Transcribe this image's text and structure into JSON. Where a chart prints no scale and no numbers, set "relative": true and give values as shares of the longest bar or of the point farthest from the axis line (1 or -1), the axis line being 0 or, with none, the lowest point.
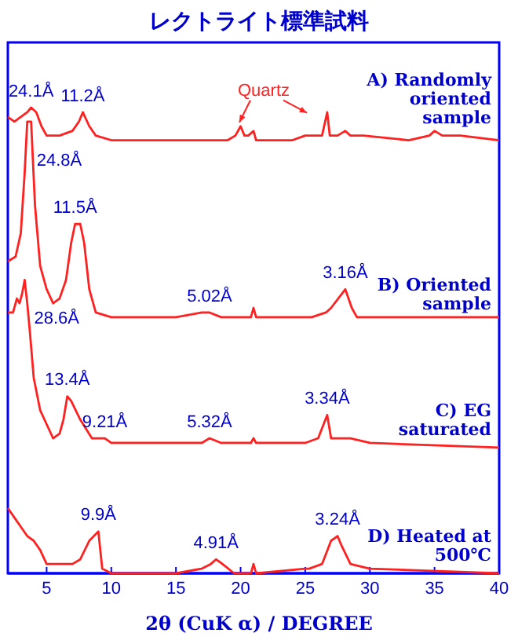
{
  "chart_data": {
    "type": "line",
    "title": "レクトライト標準試料",
    "xlabel": "2θ (CuK α) / DEGREE",
    "relative": true,
    "xlim": [
      2,
      40
    ],
    "xticks": [
      5,
      10,
      15,
      20,
      25,
      30,
      35,
      40
    ],
    "tick_labels": "x",
    "legend": false,
    "grid": false,
    "marker": "none",
    "line_style": "solid",
    "series": [
      {
        "name": "A) Randomly oriented sample",
        "color": "#ff2020",
        "x": [
          2,
          2.5,
          3,
          3.5,
          3.8,
          4.2,
          4.6,
          5,
          6,
          7,
          7.5,
          7.8,
          8.3,
          8.8,
          10,
          15,
          19,
          19.6,
          20,
          20.3,
          20.6,
          21,
          21.2,
          24,
          25,
          26.3,
          26.7,
          26.9,
          27.5,
          28.1,
          28.5,
          29.5,
          33,
          34.6,
          35,
          35.6,
          37,
          40
        ],
        "values": [
          0.98,
          0.97,
          0.98,
          0.99,
          1,
          0.99,
          0.96,
          0.94,
          0.94,
          0.95,
          0.97,
          0.99,
          0.96,
          0.94,
          0.93,
          0.93,
          0.93,
          0.94,
          0.96,
          0.94,
          0.94,
          0.95,
          0.93,
          0.93,
          0.94,
          0.94,
          0.99,
          0.94,
          0.94,
          0.95,
          0.94,
          0.94,
          0.93,
          0.94,
          0.95,
          0.94,
          0.94,
          0.93
        ]
      },
      {
        "name": "B) Oriented sample",
        "color": "#ff2020",
        "x": [
          2,
          2.6,
          3,
          3.3,
          3.5,
          3.8,
          4.1,
          4.5,
          5,
          5.5,
          6,
          6.5,
          6.9,
          7.2,
          7.6,
          7.9,
          8.3,
          8.8,
          10,
          15,
          17,
          17.6,
          18.5,
          20,
          20.8,
          21,
          21.2,
          24,
          25,
          25.5,
          26.6,
          27,
          28.1,
          28.6,
          29,
          30,
          40
        ],
        "values": [
          0.67,
          0.68,
          0.73,
          0.86,
          0.97,
          0.97,
          0.79,
          0.66,
          0.61,
          0.58,
          0.59,
          0.63,
          0.71,
          0.75,
          0.75,
          0.71,
          0.61,
          0.56,
          0.55,
          0.55,
          0.56,
          0.56,
          0.55,
          0.55,
          0.55,
          0.57,
          0.55,
          0.55,
          0.55,
          0.55,
          0.56,
          0.57,
          0.61,
          0.57,
          0.55,
          0.55,
          0.55
        ]
      },
      {
        "name": "C) EG saturated",
        "color": "#ff2020",
        "x": [
          2,
          2.4,
          2.7,
          2.9,
          3.1,
          3.3,
          3.5,
          3.7,
          4,
          4.5,
          5,
          5.5,
          6,
          6.3,
          6.6,
          6.9,
          7.6,
          8.5,
          9.5,
          10,
          15,
          17,
          17.6,
          18.5,
          20.8,
          21,
          21.2,
          25,
          26,
          26.7,
          27,
          28.5,
          30,
          40
        ],
        "values": [
          0.56,
          0.56,
          0.59,
          0.58,
          0.6,
          0.63,
          0.58,
          0.52,
          0.42,
          0.35,
          0.32,
          0.29,
          0.3,
          0.33,
          0.38,
          0.37,
          0.33,
          0.29,
          0.29,
          0.28,
          0.28,
          0.28,
          0.29,
          0.28,
          0.28,
          0.29,
          0.28,
          0.28,
          0.29,
          0.34,
          0.29,
          0.29,
          0.28,
          0.27
        ]
      },
      {
        "name": "D) Heated at 500℃",
        "color": "#ff2020",
        "x": [
          2,
          2.5,
          3,
          3.5,
          4,
          4.5,
          5,
          6,
          7,
          7.6,
          8.3,
          9,
          9.3,
          10,
          15,
          17,
          17.7,
          18.1,
          18.6,
          19.5,
          20.8,
          21,
          21.2,
          25,
          25.3,
          26.3,
          27,
          27.5,
          27.8,
          28.5,
          30,
          40
        ],
        "values": [
          0.14,
          0.12,
          0.1,
          0.08,
          0.07,
          0.05,
          0.02,
          0.02,
          0.02,
          0.03,
          0.07,
          0.09,
          0.01,
          0,
          0,
          0.01,
          0.02,
          0.03,
          0.02,
          0,
          0,
          0.02,
          0,
          0.01,
          0.01,
          0.02,
          0.07,
          0.08,
          0.06,
          0.02,
          0.01,
          0
        ]
      }
    ],
    "annotations": [
      {
        "text": "24.1Å",
        "x": 3.8,
        "y": 1
      },
      {
        "text": "11.2Å",
        "x": 7.8,
        "y": 0.99
      },
      "Quartz",
      {
        "text": "24.8Å",
        "x": 3.5,
        "y": 0.97
      },
      {
        "text": "11.5Å",
        "x": 7.2,
        "y": 0.75
      },
      {
        "text": "5.02Å",
        "x": 17.6,
        "y": 0.56
      },
      {
        "text": "3.16Å",
        "x": 28.1,
        "y": 0.61
      },
      {
        "text": "28.6Å",
        "x": 3.3,
        "y": 0.63
      },
      {
        "text": "13.4Å",
        "x": 6.6,
        "y": 0.38
      },
      {
        "text": "9.21Å",
        "x": 9.5,
        "y": 0.29
      },
      {
        "text": "5.32Å",
        "x": 17.6,
        "y": 0.29
      },
      {
        "text": "3.34Å",
        "x": 26.7,
        "y": 0.34
      },
      {
        "text": "9.9Å",
        "x": 9,
        "y": 0.09
      },
      {
        "text": "4.91Å",
        "x": 18.1,
        "y": 0.03
      },
      {
        "text": "3.24Å",
        "x": 27.5,
        "y": 0.08
      }
    ]
  }
}
